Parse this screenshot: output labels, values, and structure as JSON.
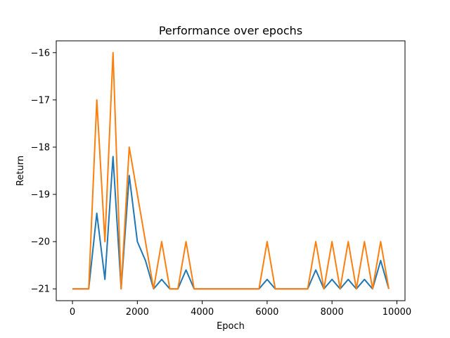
{
  "chart_data": {
    "type": "line",
    "title": "Performance over epochs",
    "xlabel": "Epoch",
    "ylabel": "Return",
    "xlim": [
      -500,
      10250
    ],
    "ylim": [
      -21.25,
      -15.75
    ],
    "grid": false,
    "legend": "none",
    "x_ticks": [
      0,
      2000,
      4000,
      6000,
      8000,
      10000
    ],
    "x_tick_labels": [
      "0",
      "2000",
      "4000",
      "6000",
      "8000",
      "10000"
    ],
    "y_ticks": [
      -16,
      -17,
      -18,
      -19,
      -20,
      -21
    ],
    "y_tick_labels": [
      "−16",
      "−17",
      "−18",
      "−19",
      "−20",
      "−21"
    ],
    "x": [
      0,
      250,
      500,
      750,
      1000,
      1250,
      1500,
      1750,
      2000,
      2250,
      2500,
      2750,
      3000,
      3250,
      3500,
      3750,
      4000,
      4250,
      4500,
      4750,
      5000,
      5250,
      5500,
      5750,
      6000,
      6250,
      6500,
      6750,
      7000,
      7250,
      7500,
      7750,
      8000,
      8250,
      8500,
      8750,
      9000,
      9250,
      9500,
      9750
    ],
    "series": [
      {
        "color": "#1f77b4",
        "values": [
          -21,
          -21,
          -21,
          -19.4,
          -20.8,
          -18.2,
          -21,
          -18.6,
          -20,
          -20.4,
          -21,
          -20.8,
          -21,
          -21,
          -20.6,
          -21,
          -21,
          -21,
          -21,
          -21,
          -21,
          -21,
          -21,
          -21,
          -20.8,
          -21,
          -21,
          -21,
          -21,
          -21,
          -20.6,
          -21,
          -20.8,
          -21,
          -20.8,
          -21,
          -20.8,
          -21,
          -20.4,
          -21
        ]
      },
      {
        "color": "#ff7f0e",
        "values": [
          -21,
          -21,
          -21,
          -17,
          -20,
          -16,
          -21,
          -18,
          -19,
          -20,
          -21,
          -20,
          -21,
          -21,
          -20,
          -21,
          -21,
          -21,
          -21,
          -21,
          -21,
          -21,
          -21,
          -21,
          -20,
          -21,
          -21,
          -21,
          -21,
          -21,
          -20,
          -21,
          -20,
          -21,
          -20,
          -21,
          -20,
          -21,
          -20,
          -21
        ]
      }
    ]
  }
}
